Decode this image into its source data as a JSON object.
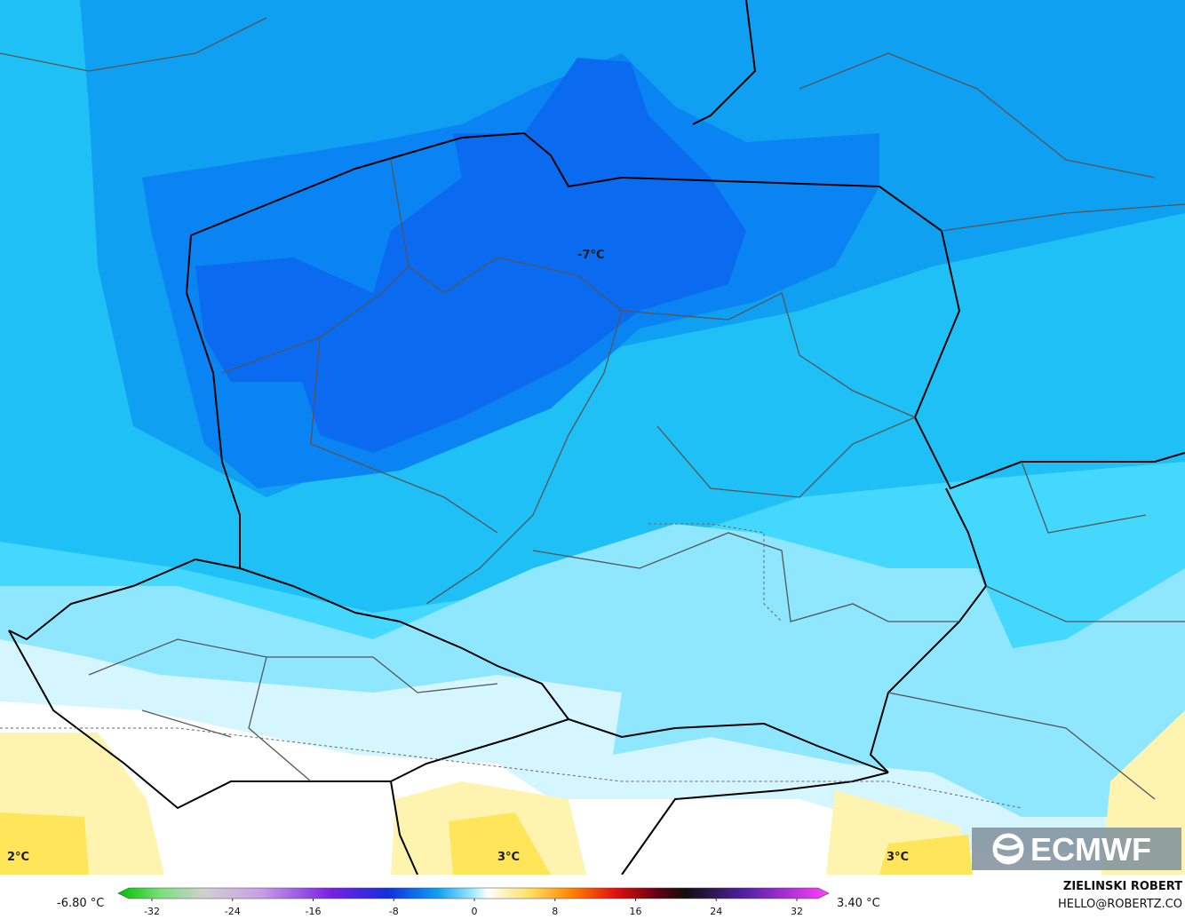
{
  "map": {
    "labels": [
      "-7°C",
      "2°C",
      "3°C",
      "3°C"
    ],
    "logo": "ECMWF",
    "legend": {
      "min_label": "-6.80 °C",
      "max_label": "3.40 °C",
      "ticks": [
        -32,
        -24,
        -16,
        -8,
        0,
        8,
        16,
        24,
        32
      ]
    },
    "credit": {
      "name": "ZIELINSKI ROBERT",
      "email": "HELLO@ROBERTZ.CO"
    }
  }
}
